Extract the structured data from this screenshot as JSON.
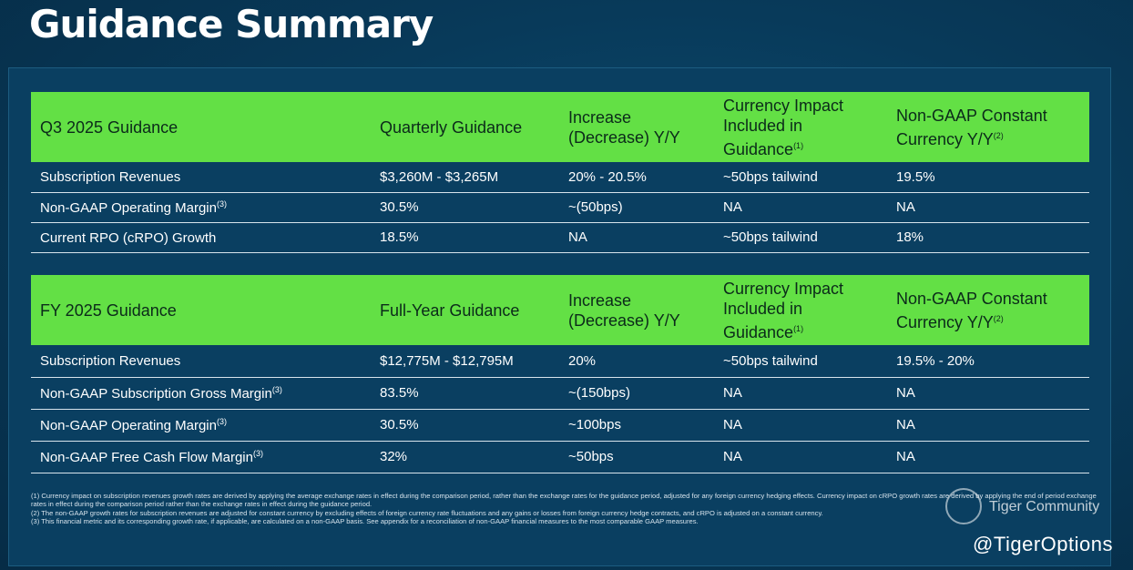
{
  "page": {
    "title": "Guidance Summary"
  },
  "q3": {
    "headers": [
      "Q3 2025 Guidance",
      "Quarterly Guidance",
      "Increase (Decrease) Y/Y",
      "Currency Impact Included in Guidance",
      "Non-GAAP Constant Currency Y/Y"
    ],
    "header_notes": [
      "",
      "",
      "",
      "(1)",
      "(2)"
    ],
    "rows": [
      {
        "label": "Subscription Revenues",
        "note": "",
        "cells": [
          "$3,260M - $3,265M",
          "20% - 20.5%",
          "~50bps tailwind",
          "19.5%"
        ]
      },
      {
        "label": "Non-GAAP Operating Margin",
        "note": "(3)",
        "cells": [
          "30.5%",
          "~(50bps)",
          "NA",
          "NA"
        ]
      },
      {
        "label": "Current RPO (cRPO) Growth",
        "note": "",
        "cells": [
          "18.5%",
          "NA",
          "~50bps tailwind",
          "18%"
        ]
      }
    ]
  },
  "fy": {
    "headers": [
      "FY 2025 Guidance",
      "Full-Year Guidance",
      "Increase (Decrease) Y/Y",
      "Currency Impact Included in Guidance",
      "Non-GAAP Constant Currency Y/Y"
    ],
    "header_notes": [
      "",
      "",
      "",
      "(1)",
      "(2)"
    ],
    "rows": [
      {
        "label": "Subscription Revenues",
        "note": "",
        "cells": [
          "$12,775M - $12,795M",
          "20%",
          "~50bps tailwind",
          "19.5% - 20%"
        ]
      },
      {
        "label": "Non-GAAP Subscription Gross Margin",
        "note": "(3)",
        "cells": [
          "83.5%",
          "~(150bps)",
          "NA",
          "NA"
        ]
      },
      {
        "label": "Non-GAAP Operating Margin",
        "note": "(3)",
        "cells": [
          "30.5%",
          "~100bps",
          "NA",
          "NA"
        ]
      },
      {
        "label": "Non-GAAP Free Cash Flow Margin",
        "note": "(3)",
        "cells": [
          "32%",
          "~50bps",
          "NA",
          "NA"
        ]
      }
    ]
  },
  "footnotes": [
    "(1) Currency impact on subscription revenues growth rates are derived by applying the average exchange rates in effect during the comparison period, rather than the exchange rates for the guidance period, adjusted for any foreign currency hedging effects. Currency impact on cRPO growth rates are derived by applying the end of period exchange rates in effect during the comparison period rather than the exchange rates in effect during the guidance period.",
    "(2) The non-GAAP growth rates for subscription revenues are adjusted for constant currency by excluding effects of foreign currency rate fluctuations and any gains or losses from foreign currency hedge contracts, and cRPO is adjusted on a constant currency.",
    "(3) This financial metric and its corresponding growth rate, if applicable, are calculated on a non-GAAP basis. See appendix for a reconciliation of non-GAAP financial measures to the most comparable GAAP measures."
  ],
  "watermark": {
    "text": "Tiger Community",
    "handle": "@TigerOptions"
  }
}
